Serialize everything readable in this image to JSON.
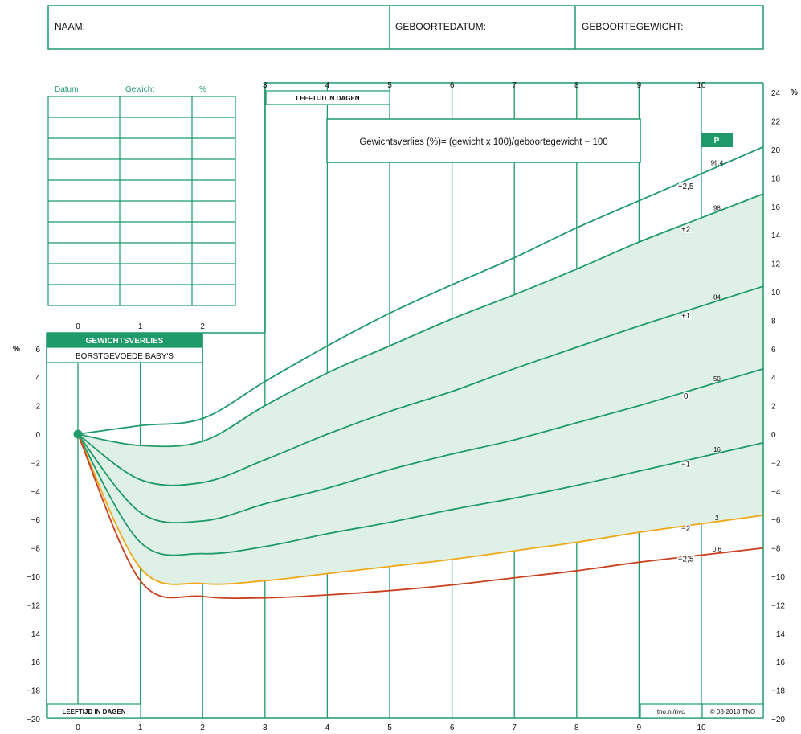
{
  "header": {
    "name_label": "NAAM:",
    "birthdate_label": "GEBOORTEDATUM:",
    "birthweight_label": "GEBOORTEGEWICHT:"
  },
  "log_table": {
    "headers": [
      "Datum",
      "Gewicht",
      "%"
    ],
    "row_count": 9
  },
  "formula": "Gewichtsverlies (%)= (gewicht x 100)/geboortegewicht − 100",
  "title_box": {
    "line1": "GEWICHTSVERLIES",
    "line2": "BORSTGEVOEDE BABY'S"
  },
  "age_label": "LEEFTIJD IN DAGEN",
  "footer": {
    "credit": "tno.nl/nvc",
    "copyright": "© 08-2013 TNO"
  },
  "colors": {
    "grid": "#1f9a6a",
    "sd_line": "#1f9a6a",
    "band_fill": "#dff0e6",
    "minus2_line": "#f0a818",
    "minus25_line": "#c8401e",
    "badge_fill": "#1f9a6a"
  },
  "chart_data": {
    "type": "line",
    "title": "GEWICHTSVERLIES BORSTGEVOEDE BABY'S",
    "xlabel": "LEEFTIJD IN DAGEN",
    "ylabel": "%",
    "xlim": [
      0,
      11
    ],
    "x_ticks": [
      0,
      1,
      2,
      3,
      4,
      5,
      6,
      7,
      8,
      9,
      10
    ],
    "ylim_left": [
      -20,
      6
    ],
    "y_ticks_left": [
      -20,
      -18,
      -16,
      -14,
      -12,
      -10,
      -8,
      -6,
      -4,
      -2,
      0,
      2,
      4,
      6
    ],
    "ylim_right": [
      -20,
      24
    ],
    "y_ticks_right": [
      -20,
      -18,
      -16,
      -14,
      -12,
      -10,
      -8,
      -6,
      -4,
      -2,
      0,
      2,
      4,
      6,
      8,
      10,
      12,
      14,
      16,
      18,
      20,
      22,
      24
    ],
    "grid": true,
    "percentile_header": "P",
    "start_point": {
      "x": 0,
      "y": 0
    },
    "series": [
      {
        "name": "+2,5",
        "percentile": "99,4",
        "x": [
          0,
          1,
          2,
          3,
          4,
          5,
          6,
          7,
          8,
          9,
          10,
          11
        ],
        "y": [
          0,
          0.6,
          1.1,
          3.7,
          6.2,
          8.5,
          10.5,
          12.4,
          14.5,
          16.4,
          18.3,
          20.2
        ]
      },
      {
        "name": "+2",
        "percentile": "98",
        "x": [
          0,
          1,
          2,
          3,
          4,
          5,
          6,
          7,
          8,
          9,
          10,
          11
        ],
        "y": [
          0,
          -0.8,
          -0.5,
          2.0,
          4.3,
          6.2,
          8.1,
          9.8,
          11.6,
          13.5,
          15.2,
          16.9
        ]
      },
      {
        "name": "+1",
        "percentile": "84",
        "x": [
          0,
          1,
          2,
          3,
          4,
          5,
          6,
          7,
          8,
          9,
          10,
          11
        ],
        "y": [
          0,
          -3.2,
          -3.4,
          -1.8,
          0,
          1.6,
          3.0,
          4.6,
          6.1,
          7.6,
          9.0,
          10.4
        ]
      },
      {
        "name": "0",
        "percentile": "50",
        "x": [
          0,
          1,
          2,
          3,
          4,
          5,
          6,
          7,
          8,
          9,
          10,
          11
        ],
        "y": [
          0,
          -5.5,
          -6.1,
          -4.9,
          -3.8,
          -2.5,
          -1.4,
          -0.4,
          0.8,
          2.0,
          3.3,
          4.6
        ]
      },
      {
        "name": "−1",
        "percentile": "16",
        "x": [
          0,
          1,
          2,
          3,
          4,
          5,
          6,
          7,
          8,
          9,
          10,
          11
        ],
        "y": [
          0,
          -7.6,
          -8.4,
          -7.9,
          -7.0,
          -6.2,
          -5.3,
          -4.5,
          -3.6,
          -2.6,
          -1.6,
          -0.6
        ]
      },
      {
        "name": "−2",
        "percentile": "2",
        "x": [
          0,
          1,
          2,
          3,
          4,
          5,
          6,
          7,
          8,
          9,
          10,
          11
        ],
        "y": [
          0,
          -9.4,
          -10.5,
          -10.3,
          -9.8,
          -9.3,
          -8.8,
          -8.2,
          -7.6,
          -6.9,
          -6.3,
          -5.7
        ]
      },
      {
        "name": "−2,5",
        "percentile": "0,6",
        "x": [
          0,
          1,
          2,
          3,
          4,
          5,
          6,
          7,
          8,
          9,
          10,
          11
        ],
        "y": [
          0,
          -10.3,
          -11.4,
          -11.5,
          -11.3,
          -11.0,
          -10.6,
          -10.1,
          -9.6,
          -9.0,
          -8.5,
          -8.0
        ]
      }
    ]
  }
}
